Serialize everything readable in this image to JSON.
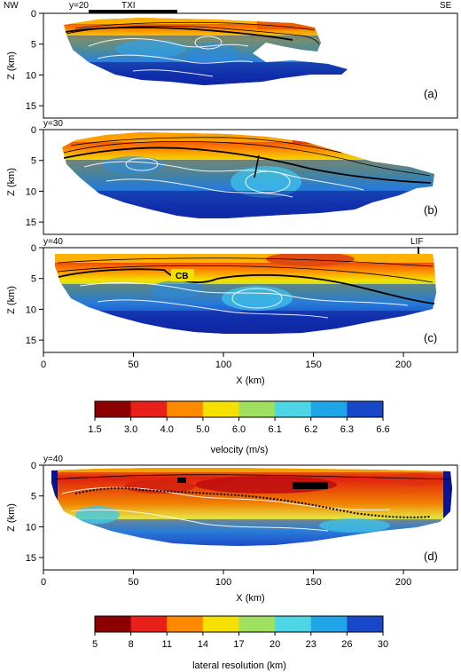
{
  "figure": {
    "corner_nw": "NW",
    "corner_se": "SE",
    "txi_label": "TXI",
    "lif_label": "LIF",
    "cb_label": "CB",
    "z_axis_label": "Z (km)",
    "x_axis_label": "X (km)"
  },
  "chart_data": [
    {
      "type": "heatmap",
      "panel": "(a)",
      "section_label": "y=20",
      "quantity": "velocity",
      "xlim": [
        0,
        230
      ],
      "ylim": [
        0,
        17
      ],
      "ylabel": "Z (km)",
      "y_ticks": [
        0,
        5,
        10,
        15
      ],
      "y_inverted": true
    },
    {
      "type": "heatmap",
      "panel": "(b)",
      "section_label": "y=30",
      "quantity": "velocity",
      "xlim": [
        0,
        230
      ],
      "ylim": [
        0,
        17
      ],
      "ylabel": "Z (km)",
      "y_ticks": [
        0,
        5,
        10,
        15
      ],
      "y_inverted": true
    },
    {
      "type": "heatmap",
      "panel": "(c)",
      "section_label": "y=40",
      "quantity": "velocity",
      "xlim": [
        0,
        230
      ],
      "ylim": [
        0,
        17
      ],
      "xlabel": "X (km)",
      "ylabel": "Z (km)",
      "x_ticks": [
        0,
        50,
        100,
        150,
        200
      ],
      "y_ticks": [
        0,
        5,
        10,
        15
      ],
      "y_inverted": true
    },
    {
      "type": "heatmap",
      "panel": "(d)",
      "section_label": "y=40",
      "quantity": "lateral resolution",
      "xlim": [
        0,
        230
      ],
      "ylim": [
        0,
        17
      ],
      "xlabel": "X (km)",
      "ylabel": "Z (km)",
      "x_ticks": [
        0,
        50,
        100,
        150,
        200
      ],
      "y_ticks": [
        0,
        5,
        10,
        15
      ],
      "y_inverted": true
    }
  ],
  "velocity_scale": {
    "label": "velocity (m/s)",
    "ticks": [
      "1.5",
      "3.0",
      "4.0",
      "5.0",
      "6.0",
      "6.1",
      "6.2",
      "6.3",
      "6.6"
    ],
    "colors": [
      "#8b0000",
      "#e8201a",
      "#ff8a00",
      "#f6e000",
      "#9fe060",
      "#4ed6e6",
      "#20a6e8",
      "#1848c8",
      "#0a1484"
    ]
  },
  "resolution_scale": {
    "label": "lateral resolution (km)",
    "ticks": [
      "5",
      "8",
      "11",
      "14",
      "17",
      "20",
      "23",
      "26",
      "30"
    ],
    "colors": [
      "#8b0000",
      "#e8201a",
      "#ff8a00",
      "#f6e000",
      "#9fe060",
      "#4ed6e6",
      "#20a6e8",
      "#1848c8",
      "#0a1484"
    ]
  }
}
